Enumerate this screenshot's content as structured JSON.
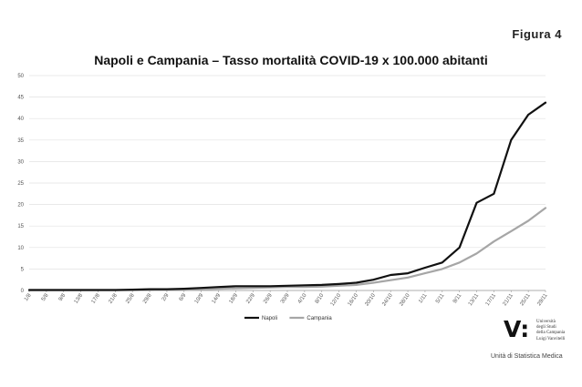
{
  "figure_label": "Figura   4",
  "chart_data": {
    "type": "line",
    "title": "Napoli e Campania – Tasso mortalità COVID-19 x 100.000 abitanti",
    "xlabel": "",
    "ylabel": "",
    "ylim": [
      0,
      50
    ],
    "yticks": [
      0,
      5,
      10,
      15,
      20,
      25,
      30,
      35,
      40,
      45,
      50
    ],
    "grid": true,
    "legend_position": "bottom",
    "x": [
      "1/8",
      "5/8",
      "9/8",
      "13/8",
      "17/8",
      "21/8",
      "25/8",
      "29/8",
      "2/9",
      "6/9",
      "10/9",
      "14/9",
      "18/9",
      "22/9",
      "26/9",
      "30/9",
      "4/10",
      "8/10",
      "12/10",
      "16/10",
      "20/10",
      "24/10",
      "28/10",
      "1/11",
      "5/11",
      "9/11",
      "13/11",
      "17/11",
      "21/11",
      "25/11",
      "29/11"
    ],
    "series": [
      {
        "name": "Napoli",
        "color": "#111111",
        "values": [
          0.1,
          0.1,
          0.1,
          0.1,
          0.1,
          0.1,
          0.2,
          0.3,
          0.3,
          0.4,
          0.6,
          0.8,
          1.0,
          1.0,
          1.0,
          1.1,
          1.2,
          1.3,
          1.5,
          1.8,
          2.5,
          3.6,
          4.0,
          5.3,
          6.5,
          10.0,
          20.4,
          22.5,
          35.0,
          40.9,
          43.7
        ]
      },
      {
        "name": "Campania",
        "color": "#a6a6a6",
        "values": [
          0.1,
          0.1,
          0.1,
          0.1,
          0.1,
          0.1,
          0.1,
          0.1,
          0.2,
          0.2,
          0.3,
          0.4,
          0.5,
          0.6,
          0.7,
          0.8,
          0.8,
          0.9,
          1.1,
          1.3,
          1.8,
          2.4,
          3.0,
          4.0,
          5.0,
          6.5,
          8.6,
          11.4,
          13.8,
          16.2,
          19.2
        ]
      }
    ]
  },
  "logo": {
    "mark": "V:",
    "text_lines": [
      "Università",
      "degli Studi",
      "della Campania",
      "Luigi Vanvitelli"
    ]
  },
  "unit_label": "Unità di Statistica Medica"
}
